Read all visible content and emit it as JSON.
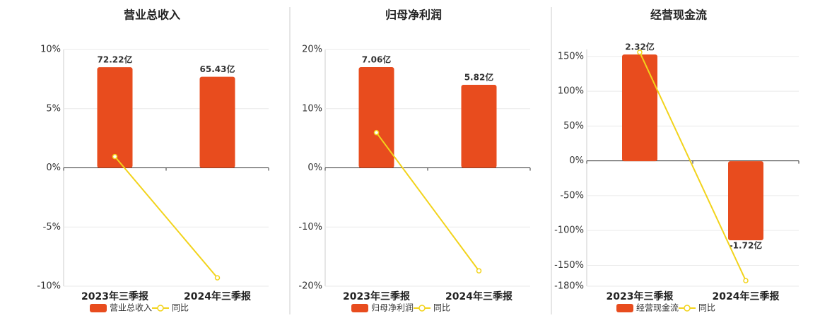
{
  "chart_data": [
    {
      "type": "bar",
      "title": "营业总收入",
      "categories": [
        "2023年三季报",
        "2024年三季报"
      ],
      "series": [
        {
          "name": "营业总收入",
          "type": "bar",
          "axis": "y2",
          "color": "#e84c1e",
          "values": [
            72.22,
            65.43
          ],
          "value_labels": [
            "72.22亿",
            "65.43亿"
          ]
        },
        {
          "name": "同比",
          "type": "line",
          "color": "#f2d31b",
          "values": [
            0.95,
            -9.29
          ]
        }
      ],
      "ylim": [
        -10,
        10
      ],
      "yticks": [
        {
          "value": 10,
          "label": "10%"
        },
        {
          "value": 5,
          "label": "5%"
        },
        {
          "value": 0,
          "label": "0%"
        },
        {
          "value": -5,
          "label": "-5%"
        },
        {
          "value": -10,
          "label": "-10%"
        }
      ],
      "y2lim": [
        -85,
        85
      ],
      "grid": true
    },
    {
      "type": "bar",
      "title": "归母净利润",
      "categories": [
        "2023年三季报",
        "2024年三季报"
      ],
      "series": [
        {
          "name": "归母净利润",
          "type": "bar",
          "axis": "y2",
          "color": "#e84c1e",
          "values": [
            7.06,
            5.82
          ],
          "value_labels": [
            "7.06亿",
            "5.82亿"
          ]
        },
        {
          "name": "同比",
          "type": "line",
          "color": "#f2d31b",
          "values": [
            5.95,
            -17.4
          ]
        }
      ],
      "ylim": [
        -20,
        20
      ],
      "yticks": [
        {
          "value": 20,
          "label": "20%"
        },
        {
          "value": 10,
          "label": "10%"
        },
        {
          "value": 0,
          "label": "0%"
        },
        {
          "value": -10,
          "label": "-10%"
        },
        {
          "value": -20,
          "label": "-20%"
        }
      ],
      "y2lim": [
        -8.3,
        8.3
      ],
      "grid": true
    },
    {
      "type": "bar",
      "title": "经营现金流",
      "categories": [
        "2023年三季报",
        "2024年三季报"
      ],
      "series": [
        {
          "name": "经营现金流",
          "type": "bar",
          "axis": "y2",
          "color": "#e84c1e",
          "values": [
            2.32,
            -1.72
          ],
          "value_labels": [
            "2.32亿",
            "-1.72亿"
          ]
        },
        {
          "name": "同比",
          "type": "line",
          "color": "#f2d31b",
          "values": [
            156,
            -172
          ]
        }
      ],
      "ylim": [
        -180,
        160
      ],
      "yticks": [
        {
          "value": 150,
          "label": "150%"
        },
        {
          "value": 100,
          "label": "100%"
        },
        {
          "value": 50,
          "label": "50%"
        },
        {
          "value": 0,
          "label": "0%"
        },
        {
          "value": -50,
          "label": "-50%"
        },
        {
          "value": -100,
          "label": "-100%"
        },
        {
          "value": -150,
          "label": "-150%"
        },
        {
          "value": -180,
          "label": "-180%"
        }
      ],
      "y2lim": [
        -2.72,
        2.43
      ],
      "grid": true
    }
  ]
}
